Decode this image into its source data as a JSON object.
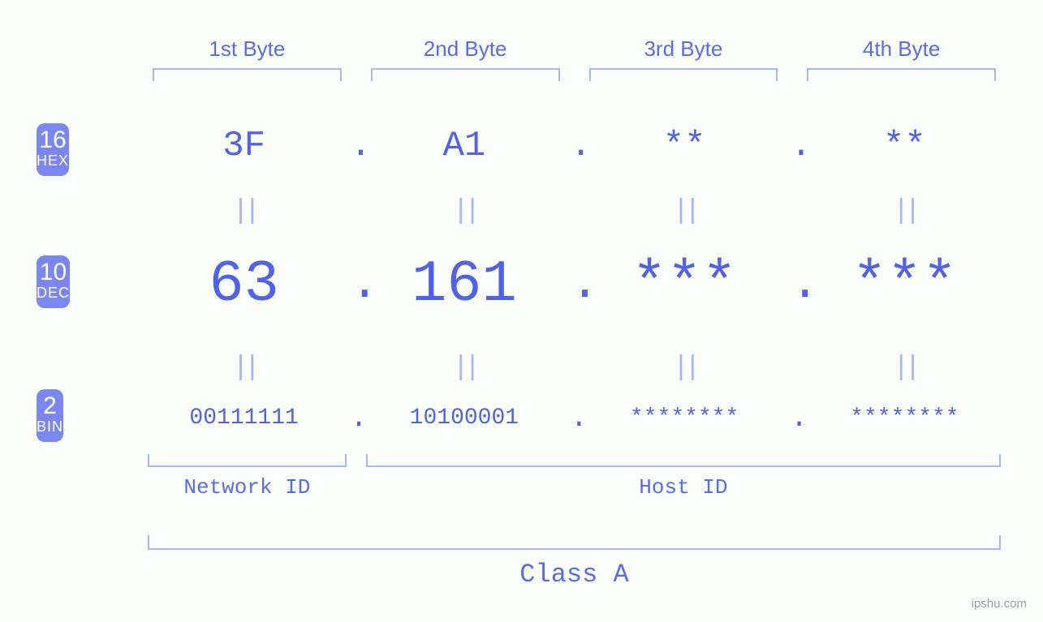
{
  "colors": {
    "background": "#fafffc",
    "primary_text": "#5161ea",
    "label_text": "#5a6af0",
    "bracket": "#a8b4f8",
    "badge_bg": "#7b86f0",
    "badge_fg": "#ffffff",
    "equals": "#a8b4f8",
    "watermark": "#9aa0a6"
  },
  "typography": {
    "mono_family": "Courier New",
    "sans_family": "Segoe UI",
    "byte_label_fontsize": 26,
    "hex_fontsize": 44,
    "dec_fontsize": 72,
    "bin_fontsize": 28,
    "equals_fontsize": 34,
    "bottom_label_fontsize": 26,
    "class_label_fontsize": 32,
    "badge_num_fontsize": 30,
    "badge_name_fontsize": 18
  },
  "byte_headers": [
    "1st Byte",
    "2nd Byte",
    "3rd Byte",
    "4th Byte"
  ],
  "badges": {
    "hex": {
      "base": "16",
      "name": "HEX"
    },
    "dec": {
      "base": "10",
      "name": "DEC"
    },
    "bin": {
      "base": "2",
      "name": "BIN"
    }
  },
  "values": {
    "hex": [
      "3F",
      "A1",
      "**",
      "**"
    ],
    "dec": [
      "63",
      "161",
      "***",
      "***"
    ],
    "bin": [
      "00111111",
      "10100001",
      "********",
      "********"
    ]
  },
  "separator": ".",
  "equals_glyph": "||",
  "bottom_labels": {
    "network": "Network ID",
    "host": "Host ID",
    "network_span_bytes": 1,
    "host_span_bytes": 3
  },
  "class_label": "Class A",
  "watermark": "ipshu.com"
}
